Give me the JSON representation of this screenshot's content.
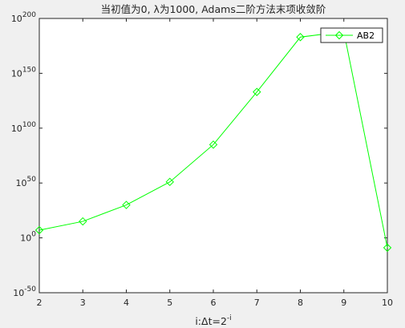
{
  "chart_data": {
    "type": "line",
    "title": "当初值为0, λ为1000, Adams二阶方法末项收敛阶",
    "xlabel": "i:Δt=2",
    "xlabel_superscript": "-i",
    "ylabel": "",
    "y_scale": "log",
    "x_ticks": [
      "2",
      "3",
      "4",
      "5",
      "6",
      "7",
      "8",
      "9",
      "10"
    ],
    "y_tick_mantissa": "10",
    "y_tick_exponents": [
      "-50",
      "0",
      "50",
      "100",
      "150",
      "200"
    ],
    "xlim": [
      2,
      10
    ],
    "ylim_log10": [
      -50,
      200
    ],
    "grid": false,
    "legend_position": "top-right",
    "line_color": "#00ff00",
    "marker": "diamond",
    "series": [
      {
        "name": "AB2",
        "x": [
          2,
          3,
          4,
          5,
          6,
          7,
          8,
          9,
          10
        ],
        "log10_y": [
          7,
          15,
          30,
          51,
          85,
          133,
          183,
          188,
          -9
        ]
      }
    ]
  }
}
